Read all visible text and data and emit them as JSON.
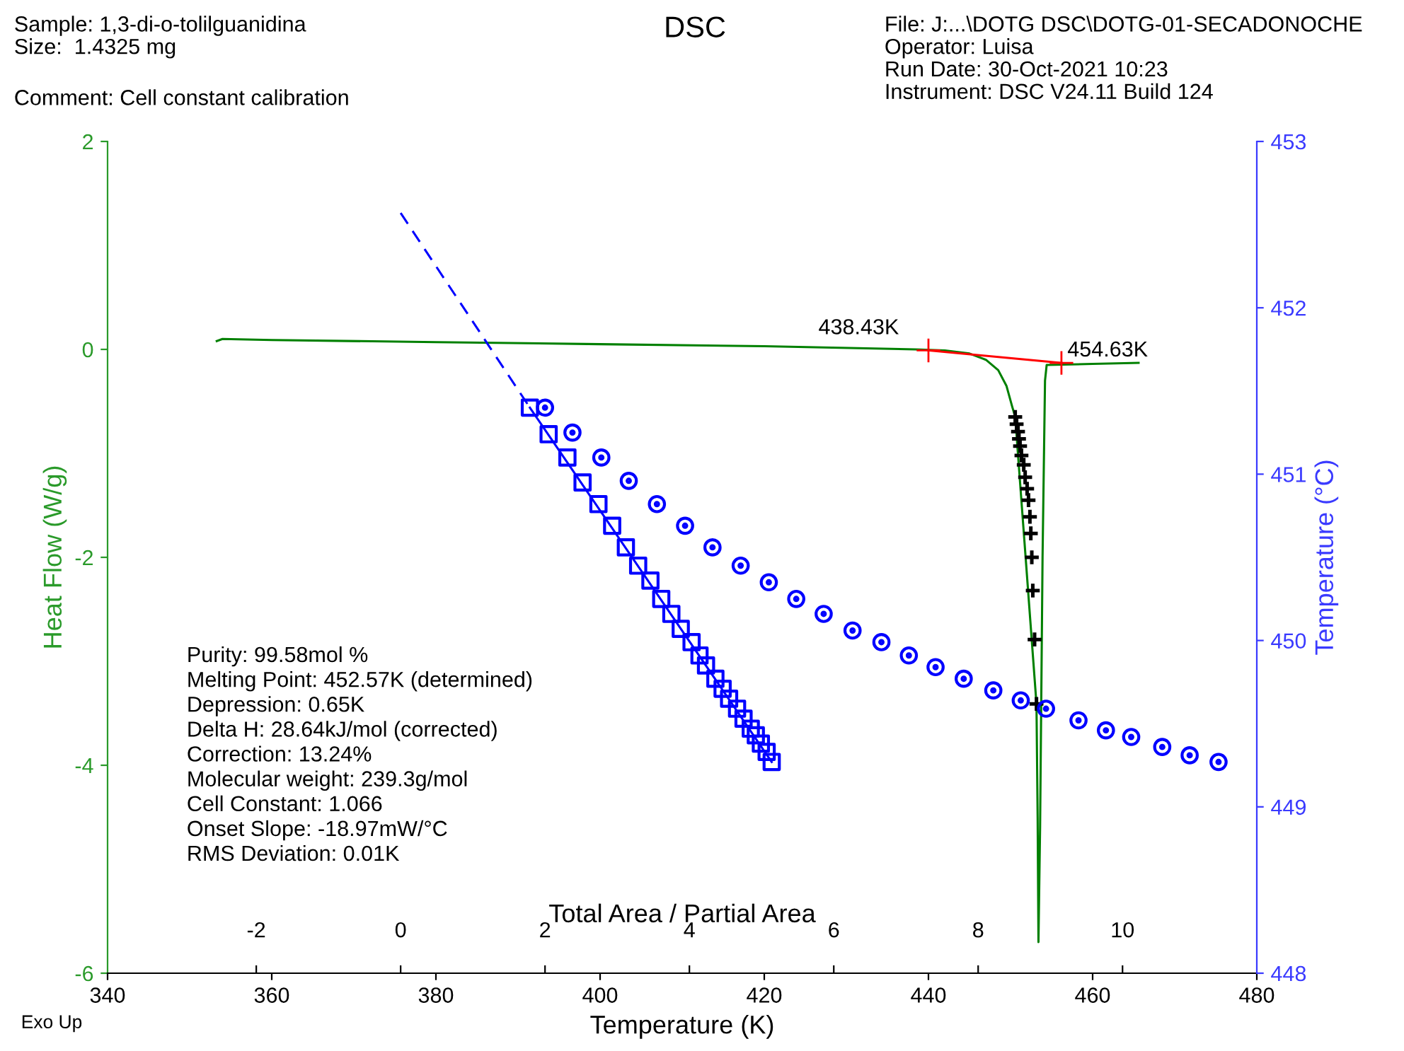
{
  "chart_data": [
    {
      "type": "line",
      "title": "DSC",
      "xlabel": "Temperature (K)",
      "ylabel": "Heat Flow (W/g)",
      "xlim": [
        340,
        480
      ],
      "xticks": [
        340,
        360,
        380,
        400,
        420,
        440,
        460,
        480
      ],
      "ylim": [
        -6,
        2
      ],
      "yticks": [
        -6,
        -4,
        -2,
        0,
        2
      ],
      "grid": false,
      "legend": false,
      "series": [
        {
          "color": "#008000",
          "marker": "none",
          "line_style": "solid",
          "x": [
            353.3,
            354,
            360,
            380,
            400,
            420,
            438.4,
            442,
            445,
            447,
            448.5,
            449.5,
            450.2,
            450.57,
            453.16,
            453.3,
            453.4,
            453.6,
            453.9,
            454.2,
            454.4,
            460,
            465.6
          ],
          "values": [
            0.08,
            0.1,
            0.09,
            0.07,
            0.05,
            0.03,
            0.0,
            -0.01,
            -0.04,
            -0.1,
            -0.2,
            -0.35,
            -0.55,
            -0.65,
            -3.41,
            -4.5,
            -5.7,
            -4.6,
            -2.0,
            -0.3,
            -0.15,
            -0.14,
            -0.13
          ]
        },
        {
          "color": "#ff0000",
          "marker": "cross",
          "line_style": "solid",
          "x": [
            440.0,
            456.2
          ],
          "values": [
            -0.01,
            -0.13
          ]
        },
        {
          "type": "scatter",
          "color": "#000000",
          "marker": "cross",
          "x": [
            450.57,
            450.74,
            450.91,
            451.03,
            451.16,
            451.33,
            451.61,
            451.78,
            452.02,
            452.19,
            452.36,
            452.47,
            452.59,
            452.71,
            452.93,
            453.16
          ],
          "values": [
            -0.65,
            -0.72,
            -0.79,
            -0.86,
            -0.93,
            -1.02,
            -1.11,
            -1.23,
            -1.34,
            -1.45,
            -1.61,
            -1.77,
            -2.0,
            -2.32,
            -2.79,
            -3.41
          ]
        }
      ],
      "annotations": [
        "Sample: 1,3-di-o-tolilguanidina\nSize:  1.4325 mg",
        "Comment: Cell constant calibration",
        "File: J:...\\DOTG DSC\\DOTG-01-SECADONOCHE\nOperator: Luisa\nRun Date: 30-Oct-2021 10:23\nInstrument: DSC V24.11 Build 124",
        "Purity: 99.58mol %\nMelting Point: 452.57K (determined)\nDepression: 0.65K\nDelta H: 28.64kJ/mol (corrected)\nCorrection: 13.24%\nMolecular weight: 239.3g/mol\nCell Constant: 1.066\nOnset Slope: -18.97mW/°C\nRMS Deviation: 0.01K",
        "Exo Up",
        {
          "text": "438.43K",
          "x": 440.0,
          "y": -0.01
        },
        {
          "text": "454.63K",
          "x": 456.2,
          "y": -0.13
        }
      ]
    },
    {
      "type": "scatter",
      "xlabel": "Total Area / Partial Area",
      "ylabel": "Temperature (°C)",
      "xlim": [
        -4.06,
        11.86
      ],
      "xticks": [
        -2,
        0,
        2,
        4,
        6,
        8,
        10
      ],
      "ylim": [
        448,
        453
      ],
      "yticks": [
        448,
        449,
        450,
        451,
        452,
        453
      ],
      "grid": false,
      "legend": false,
      "series": [
        {
          "type": "line",
          "color": "#0000ff",
          "marker": "none",
          "line_style": "dashed",
          "x": [
            0.0,
            1.79
          ],
          "values": [
            452.57,
            451.4
          ]
        },
        {
          "type": "line",
          "color": "#0000ff",
          "marker": "none",
          "line_style": "solid",
          "x": [
            1.79,
            5.14
          ],
          "values": [
            451.4,
            449.27
          ]
        },
        {
          "color": "#0000ff",
          "marker": "square",
          "x": [
            1.79,
            2.05,
            2.31,
            2.52,
            2.74,
            2.93,
            3.12,
            3.29,
            3.46,
            3.61,
            3.75,
            3.88,
            4.03,
            4.14,
            4.23,
            4.36,
            4.46,
            4.55,
            4.66,
            4.75,
            4.85,
            4.92,
            4.99,
            5.07,
            5.14
          ],
          "values": [
            451.4,
            451.24,
            451.1,
            450.95,
            450.82,
            450.69,
            450.56,
            450.45,
            450.36,
            450.25,
            450.16,
            450.07,
            449.99,
            449.91,
            449.85,
            449.77,
            449.71,
            449.65,
            449.59,
            449.53,
            449.47,
            449.43,
            449.38,
            449.33,
            449.27
          ]
        },
        {
          "color": "#0000ff",
          "marker": "circle",
          "x": [
            2.0,
            2.38,
            2.78,
            3.16,
            3.55,
            3.94,
            4.32,
            4.71,
            5.1,
            5.48,
            5.86,
            6.26,
            6.66,
            7.04,
            7.41,
            7.8,
            8.21,
            8.59,
            8.94,
            9.39,
            9.77,
            10.12,
            10.55,
            10.93,
            11.33
          ],
          "values": [
            451.4,
            451.25,
            451.1,
            450.96,
            450.82,
            450.69,
            450.56,
            450.45,
            450.35,
            450.25,
            450.16,
            450.06,
            449.99,
            449.91,
            449.84,
            449.77,
            449.7,
            449.64,
            449.59,
            449.52,
            449.46,
            449.42,
            449.36,
            449.31,
            449.27
          ]
        }
      ]
    }
  ]
}
